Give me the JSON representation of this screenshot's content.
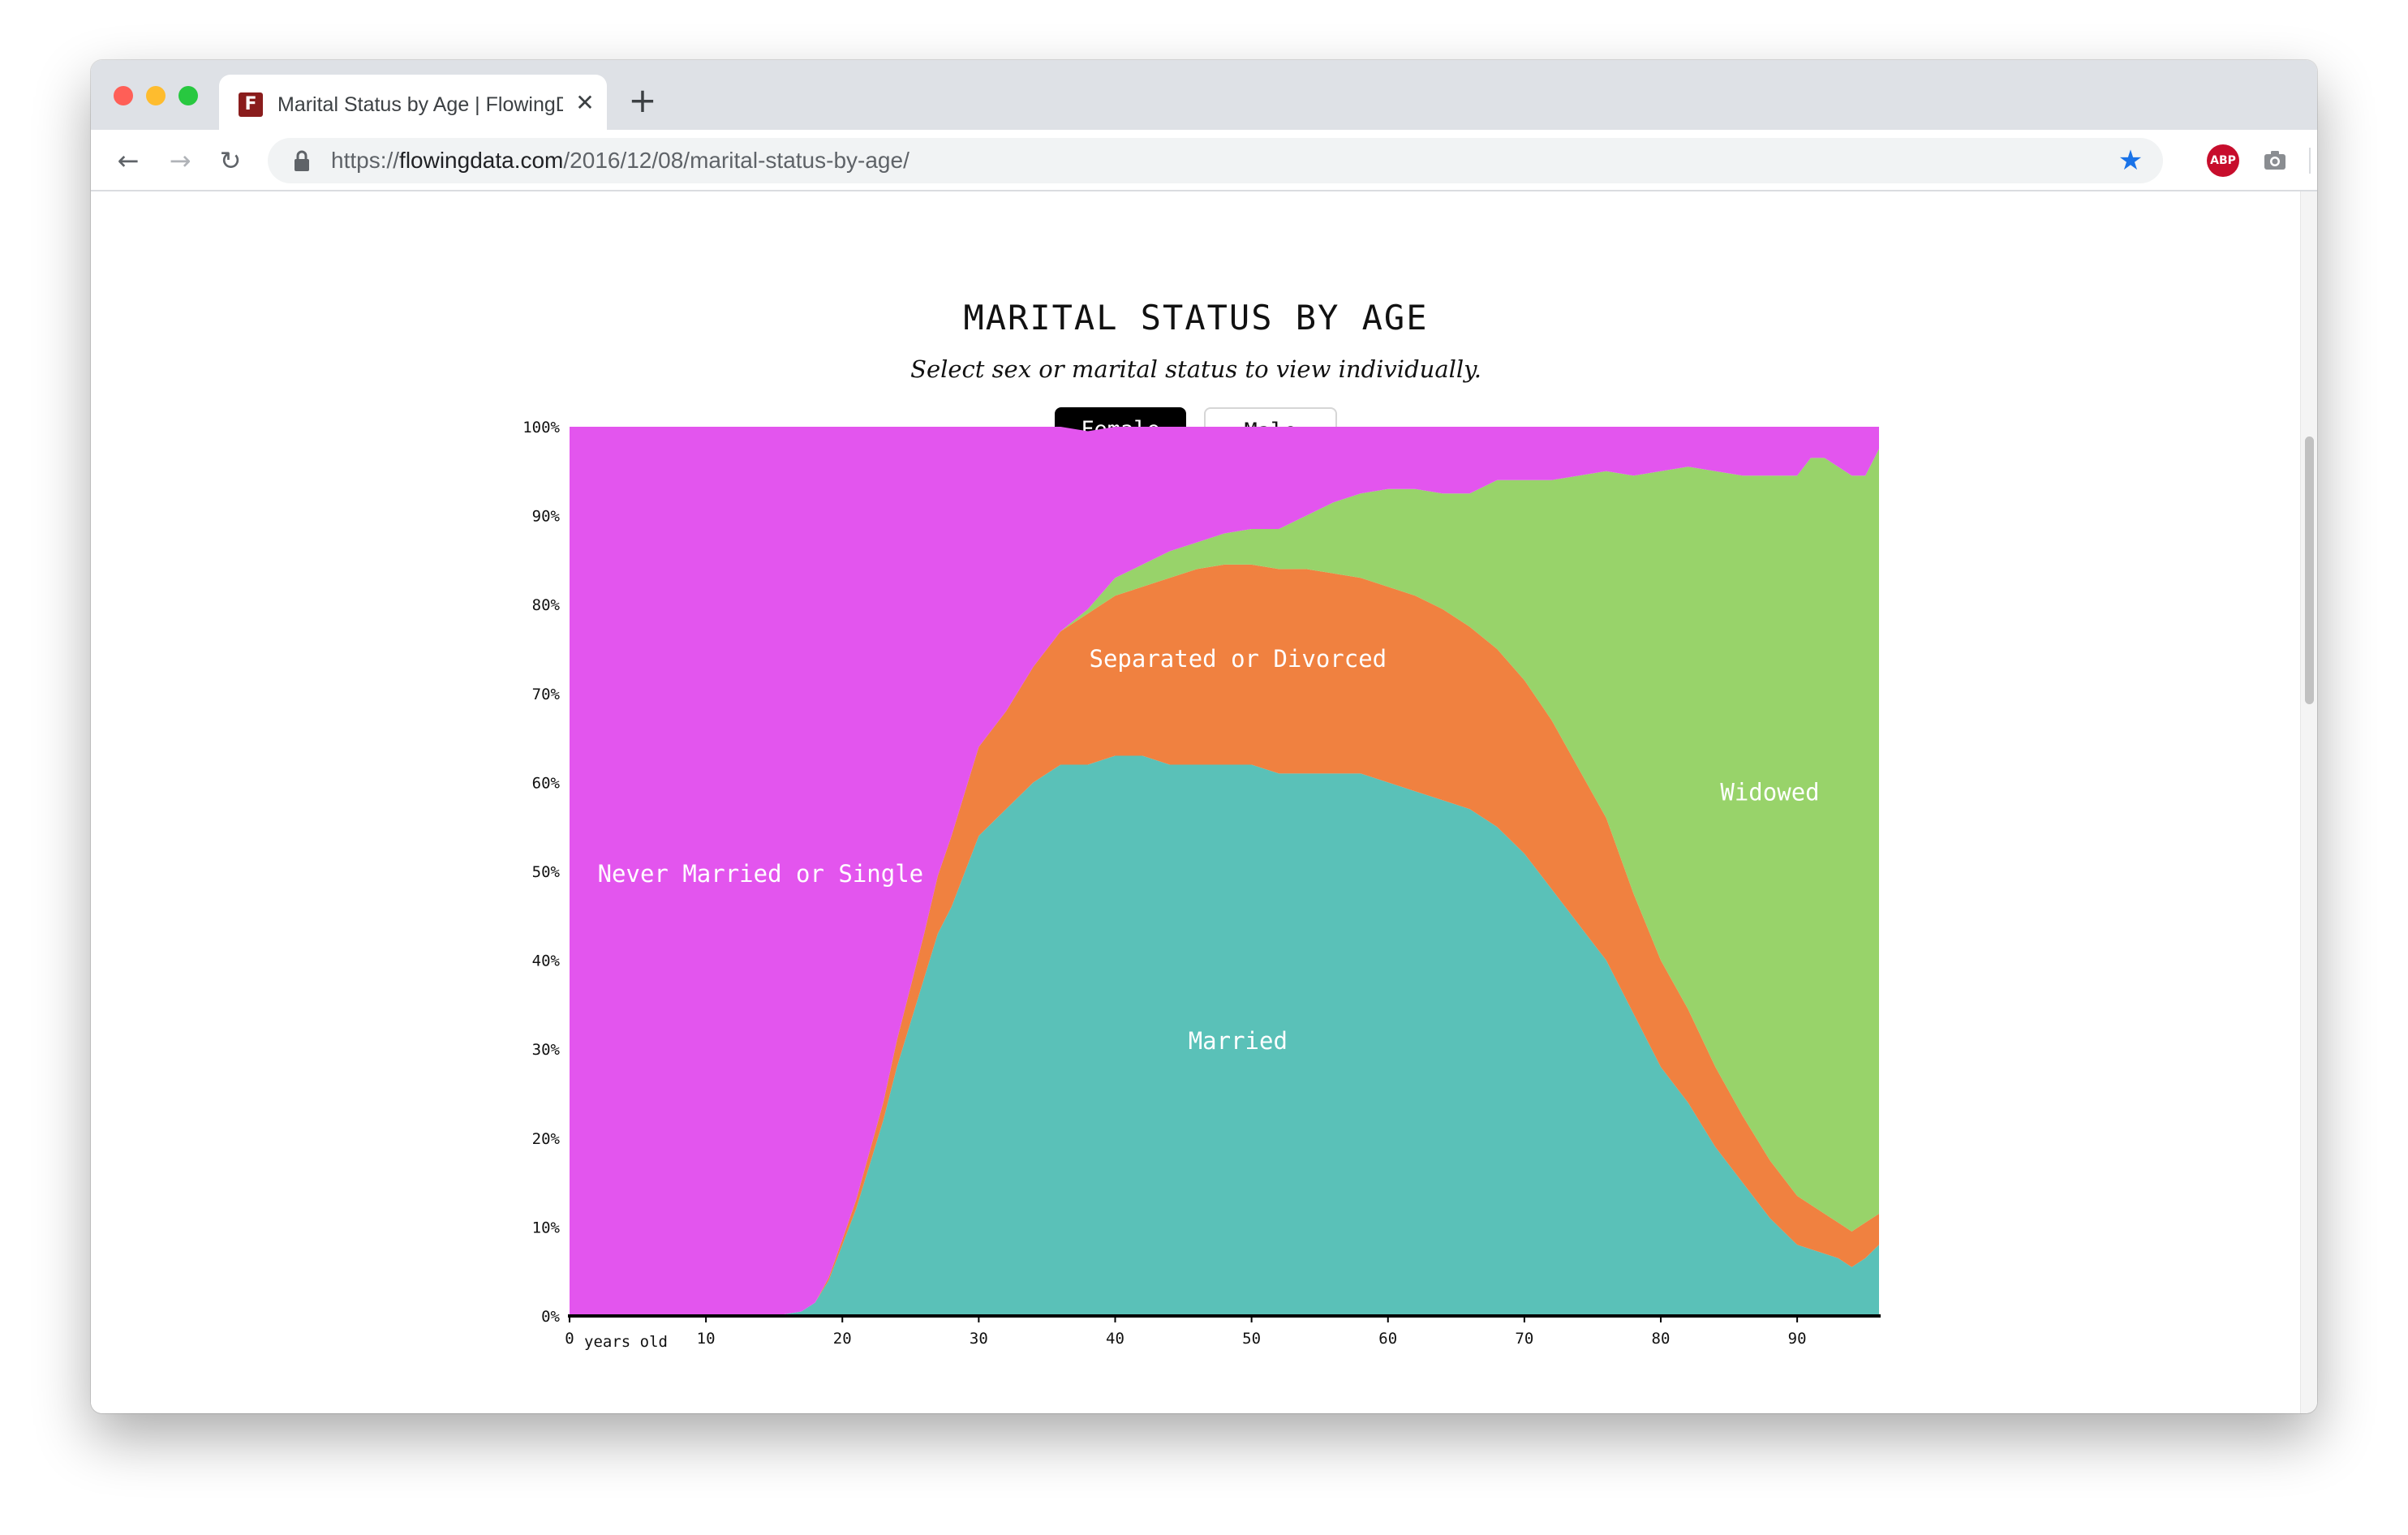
{
  "browser": {
    "tab_title": "Marital Status by Age | FlowingData",
    "tab_close": "✕",
    "new_tab": "+",
    "url_prefix": "https://",
    "url_domain": "flowingdata.com",
    "url_path": "/2016/12/08/marital-status-by-age/",
    "favicon_letter": "F",
    "abp_label": "ABP",
    "update_glyph": "↑",
    "star_glyph": "★"
  },
  "page": {
    "title": "MARITAL STATUS BY AGE",
    "subtitle": "Select sex or marital status to view individually.",
    "buttons": {
      "female": "Female",
      "male": "Male"
    }
  },
  "colors": {
    "never_married": "#e355ee",
    "married": "#5ac1b8",
    "separated": "#f08140",
    "widowed": "#98d36a",
    "axis": "#000000",
    "button_active": "#000000"
  },
  "chart_data": {
    "type": "area",
    "stacked": true,
    "normalized": true,
    "title": "MARITAL STATUS BY AGE",
    "xlabel": "years old",
    "ylabel": "",
    "xlim": [
      0,
      96
    ],
    "ylim": [
      0,
      100
    ],
    "x_ticks": [
      "0",
      "10",
      "20",
      "30",
      "40",
      "50",
      "60",
      "70",
      "80",
      "90"
    ],
    "x_tick_values": [
      0,
      10,
      20,
      30,
      40,
      50,
      60,
      70,
      80,
      90
    ],
    "y_ticks": [
      "0%",
      "10%",
      "20%",
      "30%",
      "40%",
      "50%",
      "60%",
      "70%",
      "80%",
      "90%",
      "100%"
    ],
    "y_tick_values": [
      0,
      10,
      20,
      30,
      40,
      50,
      60,
      70,
      80,
      90,
      100
    ],
    "x": [
      0,
      15,
      17,
      18,
      19,
      20,
      21,
      22,
      23,
      24,
      25,
      26,
      27,
      28,
      29,
      30,
      32,
      34,
      36,
      38,
      40,
      42,
      44,
      46,
      48,
      50,
      52,
      54,
      56,
      58,
      60,
      62,
      64,
      66,
      68,
      70,
      72,
      74,
      76,
      78,
      80,
      82,
      84,
      86,
      88,
      90,
      91,
      92,
      93,
      94,
      95,
      96
    ],
    "series": [
      {
        "name": "Married",
        "label": "Married",
        "values": [
          0,
          0,
          0.5,
          1.5,
          4,
          8,
          12,
          17,
          22,
          28,
          33,
          38,
          43,
          46,
          50,
          54,
          57,
          60,
          62,
          62,
          63,
          63,
          62,
          62,
          62,
          62,
          61,
          61,
          61,
          61,
          60,
          59,
          58,
          57,
          55,
          52,
          48,
          44,
          40,
          34,
          28,
          24,
          19,
          15,
          11,
          8,
          7.5,
          7,
          6.5,
          5.5,
          6.5,
          8
        ]
      },
      {
        "name": "Separated or Divorced",
        "label": "Separated or Divorced",
        "values": [
          0,
          0,
          0,
          0,
          0.3,
          0.6,
          1,
          1.5,
          2,
          3,
          4,
          5,
          6.5,
          8,
          9,
          10,
          11,
          13,
          15,
          17,
          18,
          19,
          21,
          22,
          22.5,
          22.5,
          23,
          23,
          22.5,
          22,
          22,
          22,
          21.5,
          20.5,
          20,
          19.5,
          19,
          17.5,
          16,
          13.5,
          12,
          10.5,
          9,
          7.5,
          6.5,
          5.5,
          5,
          4.5,
          4,
          4,
          4,
          3.5
        ]
      },
      {
        "name": "Widowed",
        "label": "Widowed",
        "values": [
          0,
          0,
          0,
          0,
          0,
          0,
          0,
          0,
          0,
          0,
          0,
          0,
          0,
          0,
          0,
          0,
          0,
          0,
          0,
          0.5,
          2,
          2.5,
          3,
          3,
          3.5,
          4,
          4.5,
          6,
          8,
          9.5,
          11,
          12,
          13,
          15,
          19,
          22.5,
          27,
          33,
          39,
          47,
          55,
          61,
          67,
          72,
          77,
          81,
          84,
          85,
          85,
          85,
          84,
          86
        ]
      },
      {
        "name": "Never Married or Single",
        "label": "Never Married or Single",
        "values": [
          100,
          100,
          99.5,
          98.5,
          95.7,
          91.4,
          87,
          81.5,
          76,
          69,
          63,
          57,
          50.5,
          46,
          41,
          36,
          32,
          27,
          23,
          20,
          17,
          15.5,
          14,
          13,
          12,
          11.5,
          11.5,
          10,
          8.5,
          7.5,
          7,
          7,
          7.5,
          7.5,
          6,
          6,
          6,
          5.5,
          5,
          5.5,
          5,
          4.5,
          5,
          5.5,
          5.5,
          5.5,
          3.5,
          3.5,
          4.5,
          5.5,
          5.5,
          2.5
        ]
      }
    ],
    "legend": "inline labels on areas",
    "grid": false
  }
}
